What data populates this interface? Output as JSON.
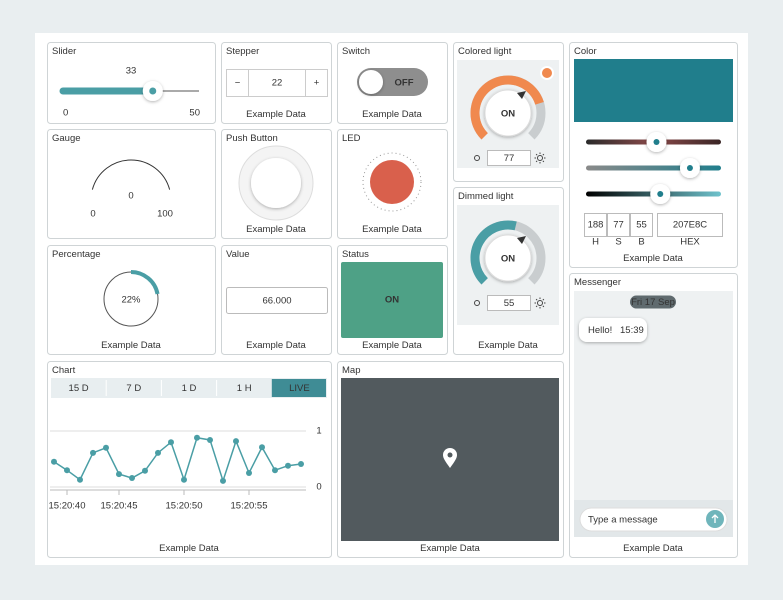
{
  "widgets": {
    "slider": {
      "title": "Slider",
      "value": 33,
      "min": 0,
      "max": 50
    },
    "stepper": {
      "title": "Stepper",
      "value": 22,
      "minus": "−",
      "plus": "+",
      "footer": "Example Data"
    },
    "switch": {
      "title": "Switch",
      "state": "OFF",
      "footer": "Example Data"
    },
    "colored_light": {
      "title": "Colored light",
      "state": "ON",
      "value": 77,
      "color": "#f0894e"
    },
    "color": {
      "title": "Color",
      "h": 188,
      "s": 77,
      "b": 55,
      "hex": "207E8C",
      "h_label": "H",
      "s_label": "S",
      "b_label": "B",
      "hex_label": "HEX",
      "footer": "Example Data"
    },
    "gauge": {
      "title": "Gauge",
      "value": 0,
      "min": 0,
      "max": 100
    },
    "push_button": {
      "title": "Push Button",
      "footer": "Example Data"
    },
    "led": {
      "title": "LED",
      "color": "#d9604c",
      "footer": "Example Data"
    },
    "dimmed_light": {
      "title": "Dimmed light",
      "state": "ON",
      "value": 55,
      "footer": "Example Data"
    },
    "percentage": {
      "title": "Percentage",
      "value": 22,
      "value_label": "22%",
      "footer": "Example Data"
    },
    "value": {
      "title": "Value",
      "value": "66.000",
      "footer": "Example Data"
    },
    "status": {
      "title": "Status",
      "state": "ON",
      "footer": "Example Data"
    },
    "messenger": {
      "title": "Messenger",
      "date": "Fri 17 Sep",
      "messages": [
        {
          "text": "Hello!",
          "time": "15:39"
        }
      ],
      "placeholder": "Type a message",
      "footer": "Example Data"
    },
    "map": {
      "title": "Map",
      "footer": "Example Data"
    }
  },
  "chart_data": {
    "type": "line",
    "title": "Chart",
    "ranges": [
      "15 D",
      "7 D",
      "1 D",
      "1 H",
      "LIVE"
    ],
    "active_range": 4,
    "categories": [
      null,
      "15:20:40",
      null,
      null,
      null,
      "15:20:45",
      null,
      null,
      null,
      null,
      "15:20:50",
      null,
      null,
      null,
      null,
      "15:20:55",
      null,
      null,
      null,
      null
    ],
    "values": [
      0.45,
      0.3,
      0.13,
      0.61,
      0.7,
      0.23,
      0.16,
      0.29,
      0.61,
      0.8,
      0.13,
      0.88,
      0.84,
      0.11,
      0.82,
      0.25,
      0.71,
      0.3,
      0.38,
      0.41
    ],
    "color": "#4a9ea5",
    "ylim": [
      0,
      1
    ],
    "yticks": [
      0,
      1
    ],
    "grid": true,
    "footer": "Example Data"
  }
}
